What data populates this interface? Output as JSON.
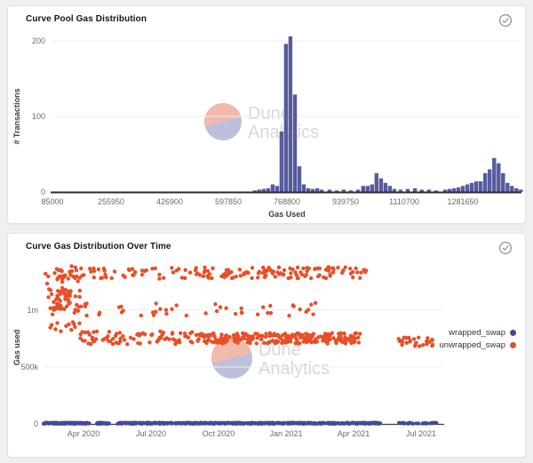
{
  "colors": {
    "page_bg": "#f0f0f2",
    "bar": "#565b9e",
    "wrapped": "#44489b",
    "unwrapped": "#e84f27",
    "axis_line": "#2b2b30",
    "grid": "#ededed",
    "tick_text": "#6b6b6f",
    "watermark_text": "#d3d3d6",
    "watermark_top": "#f1b2a5",
    "watermark_bottom": "#b7bad8",
    "icon": "#8e8e93"
  },
  "watermark": {
    "line1": "Dune",
    "line2": "Analytics"
  },
  "status_icon": "check-circle",
  "chart_data": [
    {
      "type": "bar",
      "title": "Curve Pool Gas Distribution",
      "xlabel": "Gas Used",
      "ylabel": "# Transactions",
      "x_ticks": [
        {
          "value": 85000,
          "label": "85000"
        },
        {
          "value": 255950,
          "label": "255950"
        },
        {
          "value": 426900,
          "label": "426900"
        },
        {
          "value": 597850,
          "label": "597850"
        },
        {
          "value": 768800,
          "label": "768800"
        },
        {
          "value": 939750,
          "label": "939750"
        },
        {
          "value": 1110700,
          "label": "1110700"
        },
        {
          "value": 1281650,
          "label": "1281650"
        }
      ],
      "y_ticks": [
        {
          "value": 0,
          "label": "0"
        },
        {
          "value": 100,
          "label": "100"
        },
        {
          "value": 200,
          "label": "200"
        }
      ],
      "xlim": [
        85000,
        1460000
      ],
      "ylim": [
        0,
        235
      ],
      "grid": true,
      "legend_position": "none",
      "bin_width": 13000,
      "bins": [
        [
          675000,
          2
        ],
        [
          688000,
          3
        ],
        [
          701000,
          4
        ],
        [
          714000,
          5
        ],
        [
          727000,
          10
        ],
        [
          740000,
          8
        ],
        [
          753000,
          80
        ],
        [
          766000,
          196
        ],
        [
          779000,
          206
        ],
        [
          792000,
          129
        ],
        [
          805000,
          34
        ],
        [
          818000,
          10
        ],
        [
          831000,
          5
        ],
        [
          844000,
          4
        ],
        [
          857000,
          5
        ],
        [
          870000,
          3
        ],
        [
          893000,
          3
        ],
        [
          914000,
          2
        ],
        [
          934000,
          3
        ],
        [
          955000,
          2
        ],
        [
          976000,
          3
        ],
        [
          991000,
          8
        ],
        [
          1004000,
          8
        ],
        [
          1017000,
          10
        ],
        [
          1030000,
          25
        ],
        [
          1043000,
          18
        ],
        [
          1056000,
          12
        ],
        [
          1069000,
          8
        ],
        [
          1082000,
          4
        ],
        [
          1100000,
          3
        ],
        [
          1121000,
          4
        ],
        [
          1142000,
          5
        ],
        [
          1162000,
          3
        ],
        [
          1183000,
          3
        ],
        [
          1204000,
          2
        ],
        [
          1230000,
          3
        ],
        [
          1243000,
          4
        ],
        [
          1256000,
          5
        ],
        [
          1269000,
          6
        ],
        [
          1282000,
          8
        ],
        [
          1295000,
          10
        ],
        [
          1308000,
          12
        ],
        [
          1321000,
          14
        ],
        [
          1334000,
          14
        ],
        [
          1347000,
          25
        ],
        [
          1360000,
          30
        ],
        [
          1373000,
          45
        ],
        [
          1386000,
          38
        ],
        [
          1399000,
          25
        ],
        [
          1412000,
          12
        ],
        [
          1425000,
          8
        ],
        [
          1438000,
          5
        ],
        [
          1451000,
          3
        ]
      ]
    },
    {
      "type": "scatter",
      "title": "Curve Gas Distribution Over Time",
      "xlabel": "",
      "ylabel": "Gas used",
      "x_ticks": [
        {
          "month": 3,
          "label": "Apr 2020"
        },
        {
          "month": 6,
          "label": "Jul 2020"
        },
        {
          "month": 9,
          "label": "Oct 2020"
        },
        {
          "month": 12,
          "label": "Jan 2021"
        },
        {
          "month": 15,
          "label": "Apr 2021"
        },
        {
          "month": 18,
          "label": "Jul 2021"
        }
      ],
      "y_ticks": [
        {
          "value": 0,
          "label": "0"
        },
        {
          "value": 500000,
          "label": "500k"
        },
        {
          "value": 1000000,
          "label": "1m"
        }
      ],
      "xlim_months": [
        1.1,
        18.9
      ],
      "ylim": [
        0,
        1440000
      ],
      "legend_position": "right",
      "legend": [
        {
          "label": "wrapped_swap",
          "series": "wrapped_swap"
        },
        {
          "label": "unwrapped_swap",
          "series": "unwrapped_swap"
        }
      ],
      "clusters": [
        {
          "series": "unwrapped_swap",
          "months": [
            1.3,
            3.1
          ],
          "gas": [
            800000,
            1390000
          ],
          "count": 55,
          "seed": 11
        },
        {
          "series": "unwrapped_swap",
          "months": [
            1.5,
            2.7
          ],
          "gas": [
            1000000,
            1190000
          ],
          "count": 28,
          "seed": 12
        },
        {
          "series": "unwrapped_swap",
          "months": [
            1.6,
            8.0
          ],
          "gas": [
            1270000,
            1375000
          ],
          "count": 60,
          "seed": 13
        },
        {
          "series": "unwrapped_swap",
          "months": [
            8.0,
            15.6
          ],
          "gas": [
            1280000,
            1380000
          ],
          "count": 115,
          "seed": 14
        },
        {
          "series": "unwrapped_swap",
          "months": [
            2.0,
            13.6
          ],
          "gas": [
            950000,
            1065000
          ],
          "count": 48,
          "seed": 15
        },
        {
          "series": "unwrapped_swap",
          "months": [
            2.4,
            8.0
          ],
          "gas": [
            700000,
            815000
          ],
          "count": 75,
          "seed": 16
        },
        {
          "series": "unwrapped_swap",
          "months": [
            8.0,
            15.3
          ],
          "gas": [
            705000,
            800000
          ],
          "count": 235,
          "seed": 17
        },
        {
          "series": "unwrapped_swap",
          "months": [
            16.8,
            18.6
          ],
          "gas": [
            675000,
            770000
          ],
          "count": 26,
          "seed": 18
        },
        {
          "series": "wrapped_swap",
          "months": [
            1.2,
            3.3
          ],
          "gas": [
            0,
            12000
          ],
          "count": 130,
          "seed": 21
        },
        {
          "series": "wrapped_swap",
          "months": [
            3.6,
            4.2
          ],
          "gas": [
            0,
            12000
          ],
          "count": 45,
          "seed": 22
        },
        {
          "series": "wrapped_swap",
          "months": [
            4.5,
            16.2
          ],
          "gas": [
            0,
            12000
          ],
          "count": 540,
          "seed": 23
        },
        {
          "series": "wrapped_swap",
          "months": [
            16.9,
            18.7
          ],
          "gas": [
            0,
            12000
          ],
          "count": 32,
          "seed": 24
        }
      ]
    }
  ]
}
